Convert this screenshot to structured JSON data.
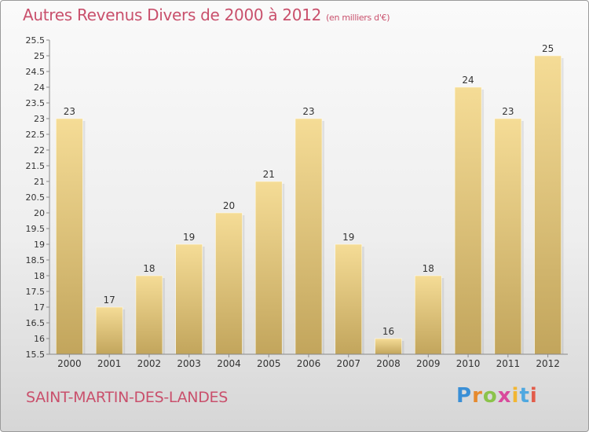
{
  "header": {
    "title": "Autres Revenus Divers de 2000 à 2012",
    "unit": "(en milliers d'€)"
  },
  "footer": {
    "commune": "SAINT-MARTIN-DES-LANDES",
    "logo": "Proxiti"
  },
  "colors": {
    "title": "#c9506c",
    "bar_light": "#f5dc96",
    "bar_dark": "#c2a55c"
  },
  "chart_data": {
    "type": "bar",
    "title": "Autres Revenus Divers de 2000 à 2012",
    "xlabel": "",
    "ylabel": "",
    "categories": [
      "2000",
      "2001",
      "2002",
      "2003",
      "2004",
      "2005",
      "2006",
      "2007",
      "2008",
      "2009",
      "2010",
      "2011",
      "2012"
    ],
    "values": [
      23,
      17,
      18,
      19,
      20,
      21,
      23,
      19,
      16,
      18,
      24,
      23,
      25
    ],
    "ylim": [
      15.5,
      25.5
    ],
    "yticks": [
      15.5,
      16,
      16.5,
      17,
      17.5,
      18,
      18.5,
      19,
      19.5,
      20,
      20.5,
      21,
      21.5,
      22,
      22.5,
      23,
      23.5,
      24,
      24.5,
      25,
      25.5
    ],
    "grid": false,
    "legend": "none"
  }
}
